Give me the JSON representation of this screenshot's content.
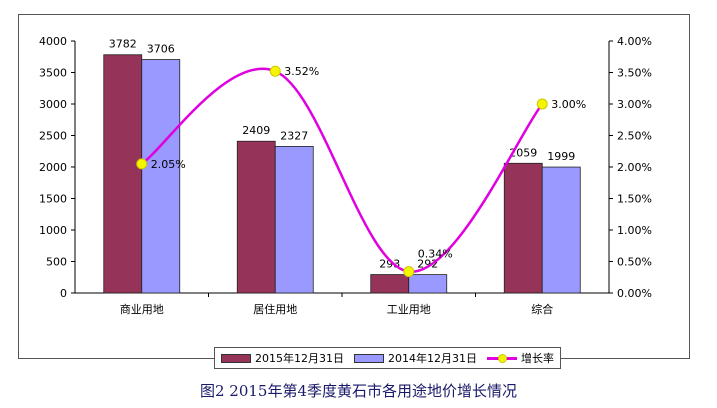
{
  "caption": "图2   2015年第4季度黄石市各用途地价增长情况",
  "chart_data": {
    "type": "bar",
    "categories": [
      "商业用地",
      "居住用地",
      "工业用地",
      "综合"
    ],
    "series": [
      {
        "name": "2015年12月31日",
        "values": [
          3782,
          2409,
          293,
          2059
        ],
        "color": "#953358"
      },
      {
        "name": "2014年12月31日",
        "values": [
          3706,
          2327,
          292,
          1999
        ],
        "color": "#9999ff"
      }
    ],
    "line_series": {
      "name": "增长率",
      "values": [
        2.05,
        3.52,
        0.34,
        3.0
      ],
      "labels": [
        "2.05%",
        "3.52%",
        "0.34%",
        "3.00%"
      ],
      "axis": "right",
      "line_color": "#e000e0",
      "marker_color": "#f5f500"
    },
    "ylim": [
      0,
      4000
    ],
    "y_ticks": [
      "0",
      "500",
      "1000",
      "1500",
      "2000",
      "2500",
      "3000",
      "3500",
      "4000"
    ],
    "y2lim": [
      0,
      4.0
    ],
    "y2_ticks": [
      "0.00%",
      "0.50%",
      "1.00%",
      "1.50%",
      "2.00%",
      "2.50%",
      "3.00%",
      "3.50%",
      "4.00%"
    ],
    "legend": "bottom",
    "grid": false
  }
}
